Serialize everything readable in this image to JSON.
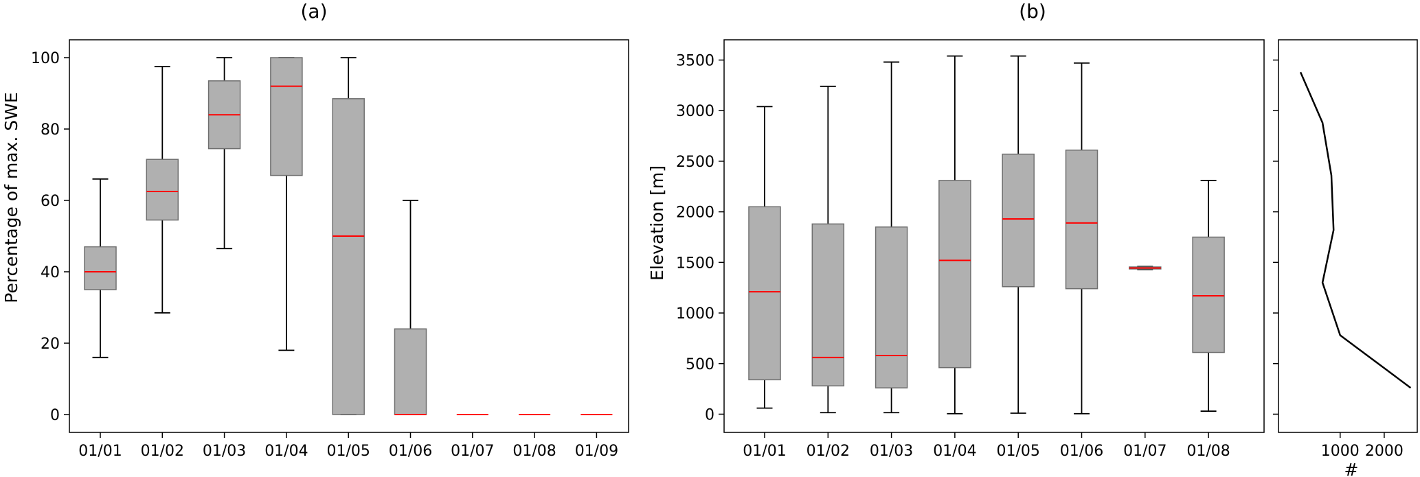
{
  "chart_data": [
    {
      "type": "box",
      "title": "(a)",
      "xlabel": "",
      "ylabel": "Percentage of max. SWE",
      "ylim": [
        -5,
        105
      ],
      "yticks": [
        0,
        20,
        40,
        60,
        80,
        100
      ],
      "categories": [
        "01/01",
        "01/02",
        "01/03",
        "01/04",
        "01/05",
        "01/06",
        "01/07",
        "01/08",
        "01/09"
      ],
      "boxes": [
        {
          "whislo": 16,
          "q1": 35,
          "med": 40,
          "q3": 47,
          "whishi": 66
        },
        {
          "whislo": 28.5,
          "q1": 54.5,
          "med": 62.5,
          "q3": 71.5,
          "whishi": 97.5
        },
        {
          "whislo": 46.5,
          "q1": 74.5,
          "med": 84,
          "q3": 93.5,
          "whishi": 100
        },
        {
          "whislo": 18,
          "q1": 67,
          "med": 92,
          "q3": 100,
          "whishi": 100
        },
        {
          "whislo": 0,
          "q1": 0,
          "med": 50,
          "q3": 88.5,
          "whishi": 100
        },
        {
          "whislo": 0,
          "q1": 0,
          "med": 0,
          "q3": 24,
          "whishi": 60
        },
        {
          "whislo": 0,
          "q1": 0,
          "med": 0,
          "q3": 0,
          "whishi": 0
        },
        {
          "whislo": 0,
          "q1": 0,
          "med": 0,
          "q3": 0,
          "whishi": 0
        },
        {
          "whislo": 0,
          "q1": 0,
          "med": 0,
          "q3": 0,
          "whishi": 0
        }
      ],
      "grid": false,
      "colors": {
        "box": "#b0b0b0",
        "median": "#ff0000",
        "whisker": "#000000"
      }
    },
    {
      "type": "box",
      "title": "(b)",
      "xlabel": "",
      "ylabel": "Elevation [m]",
      "ylim": [
        -180,
        3700
      ],
      "yticks": [
        0,
        500,
        1000,
        1500,
        2000,
        2500,
        3000,
        3500
      ],
      "categories": [
        "01/01",
        "01/02",
        "01/03",
        "01/04",
        "01/05",
        "01/06",
        "01/07",
        "01/08"
      ],
      "boxes": [
        {
          "whislo": 60,
          "q1": 340,
          "med": 1210,
          "q3": 2050,
          "whishi": 3040
        },
        {
          "whislo": 15,
          "q1": 280,
          "med": 560,
          "q3": 1880,
          "whishi": 3240
        },
        {
          "whislo": 15,
          "q1": 260,
          "med": 580,
          "q3": 1850,
          "whishi": 3480
        },
        {
          "whislo": 5,
          "q1": 460,
          "med": 1520,
          "q3": 2310,
          "whishi": 3540
        },
        {
          "whislo": 10,
          "q1": 1260,
          "med": 1930,
          "q3": 2570,
          "whishi": 3540
        },
        {
          "whislo": 5,
          "q1": 1240,
          "med": 1890,
          "q3": 2610,
          "whishi": 3470
        },
        {
          "whislo": 1430,
          "q1": 1435,
          "med": 1445,
          "q3": 1455,
          "whishi": 1460
        },
        {
          "whislo": 30,
          "q1": 610,
          "med": 1170,
          "q3": 1750,
          "whishi": 2310
        }
      ],
      "grid": false,
      "colors": {
        "box": "#b0b0b0",
        "median": "#ff0000",
        "whisker": "#000000"
      }
    },
    {
      "type": "line",
      "title": "",
      "xlabel": "#",
      "ylabel": "",
      "xticks": [
        1000,
        2000
      ],
      "xlim": [
        -400,
        2750
      ],
      "ylim": [
        -180,
        3700
      ],
      "x": [
        100,
        600,
        800,
        850,
        600,
        1000,
        2600
      ],
      "y": [
        3380,
        2880,
        2360,
        1820,
        1300,
        780,
        260
      ],
      "grid": false
    }
  ]
}
